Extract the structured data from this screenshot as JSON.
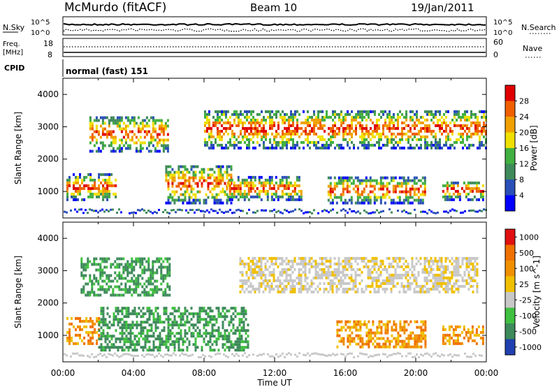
{
  "header": {
    "station": "McMurdo (fitACF)",
    "beam": "Beam 10",
    "date": "19/Jan/2011"
  },
  "top_panels": {
    "nsky_label": "N.Sky",
    "nsearch_label": "N.Search",
    "nsky_ticks": [
      "10^5",
      "10^0"
    ],
    "nsearch_ticks": [
      "10^5",
      "10^0"
    ],
    "freq_label_line1": "Freq.",
    "freq_label_line2": "[MHz]",
    "freq_ticks": [
      "18",
      "8"
    ],
    "nave_label": "Nave",
    "nave_ticks": [
      "60",
      "0"
    ],
    "cpid_label": "CPID",
    "cpid_value": "normal (fast) 151"
  },
  "colors": {
    "power": [
      "#0000ff",
      "#2a4fb8",
      "#3f8a5a",
      "#40b040",
      "#f0e000",
      "#f0a000",
      "#f06000",
      "#e00000"
    ],
    "velocity": [
      "#2040b0",
      "#3d8a5a",
      "#40c040",
      "#c8c8c8",
      "#f0c000",
      "#f09000",
      "#f07000",
      "#e01010"
    ]
  },
  "chart_data": [
    {
      "type": "heatmap",
      "quantity": "power",
      "ylabel": "Slant Range [km]",
      "yticks": [
        "4000",
        "3000",
        "2000",
        "1000"
      ],
      "ylim": [
        180,
        4500
      ],
      "xlim": [
        0,
        24
      ],
      "colorbar_label": "Power [dB]",
      "colorbar_ticks": [
        "28",
        "24",
        "20",
        "16",
        "12",
        "8",
        "4"
      ],
      "echo_bands": [
        {
          "t0": 0.2,
          "t1": 3.0,
          "r0": 700,
          "r1": 1500
        },
        {
          "t0": 1.5,
          "t1": 6.0,
          "r0": 2200,
          "r1": 3300
        },
        {
          "t0": 5.8,
          "t1": 9.5,
          "r0": 600,
          "r1": 1800
        },
        {
          "t0": 9.3,
          "t1": 13.5,
          "r0": 700,
          "r1": 1400
        },
        {
          "t0": 8.0,
          "t1": 24.0,
          "r0": 2300,
          "r1": 3500
        },
        {
          "t0": 15.0,
          "t1": 20.5,
          "r0": 600,
          "r1": 1400
        },
        {
          "t0": 21.5,
          "t1": 23.8,
          "r0": 700,
          "r1": 1300
        }
      ]
    },
    {
      "type": "heatmap",
      "quantity": "velocity",
      "xlabel": "Time UT",
      "ylabel": "Slant Range [km]",
      "yticks": [
        "4000",
        "3000",
        "2000",
        "1000"
      ],
      "xticks": [
        "00:00",
        "04:00",
        "08:00",
        "12:00",
        "16:00",
        "20:00",
        "00:00"
      ],
      "ylim": [
        180,
        4500
      ],
      "xlim": [
        0,
        24
      ],
      "colorbar_label": "Velocity [m s^-1]",
      "colorbar_ticks": [
        "1000",
        "500",
        "100",
        "25",
        "-25",
        "-100",
        "-500",
        "-1000"
      ],
      "echo_bands": [
        {
          "t0": 0.2,
          "t1": 2.0,
          "r0": 700,
          "r1": 1500,
          "class": "away"
        },
        {
          "t0": 2.0,
          "t1": 10.5,
          "r0": 500,
          "r1": 1800,
          "class": "toward"
        },
        {
          "t0": 1.0,
          "t1": 6.0,
          "r0": 2200,
          "r1": 3400,
          "class": "toward"
        },
        {
          "t0": 10.0,
          "t1": 23.5,
          "r0": 2300,
          "r1": 3400,
          "class": "slow"
        },
        {
          "t0": 15.5,
          "t1": 20.5,
          "r0": 600,
          "r1": 1400,
          "class": "away"
        },
        {
          "t0": 21.5,
          "t1": 23.8,
          "r0": 700,
          "r1": 1300,
          "class": "away"
        }
      ]
    }
  ]
}
